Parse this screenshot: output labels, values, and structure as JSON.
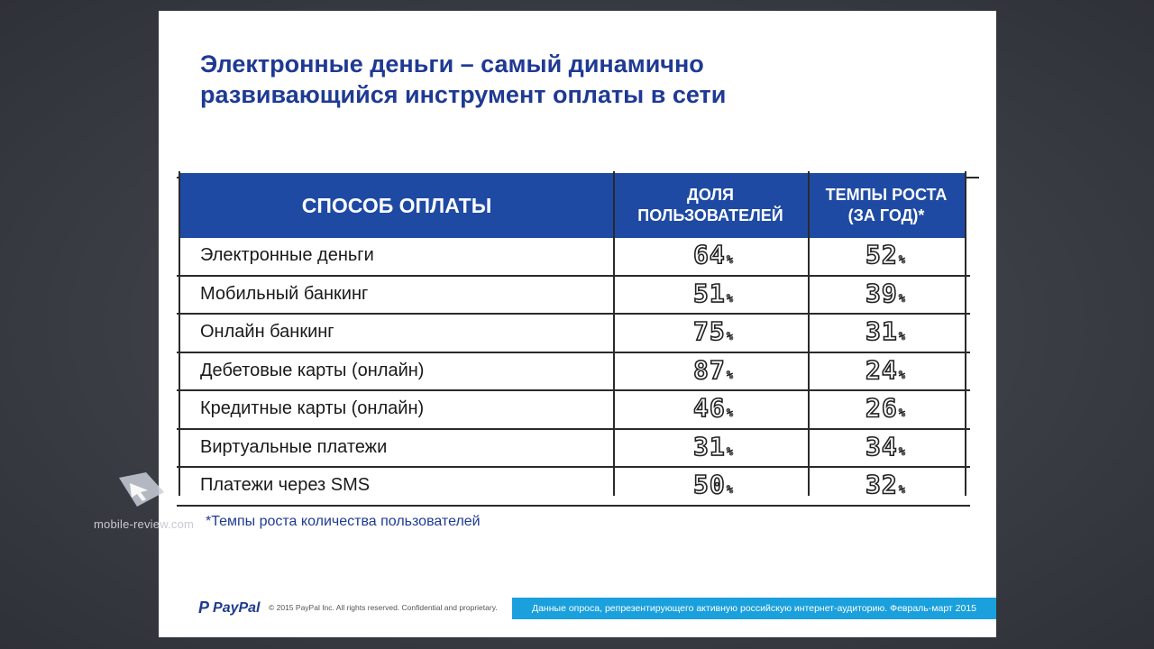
{
  "slide": {
    "title_line1": "Электронные деньги – самый динамично",
    "title_line2": "развивающийся инструмент оплаты в сети"
  },
  "table": {
    "headers": {
      "method": "СПОСОБ ОПЛАТЫ",
      "share_line1": "ДОЛЯ",
      "share_line2": "ПОЛЬЗОВАТЕЛЕЙ",
      "growth_line1": "ТЕМПЫ РОСТА",
      "growth_line2": "(ЗА ГОД)*"
    },
    "rows": [
      {
        "method": "Электронные деньги",
        "share": "64",
        "growth": "52"
      },
      {
        "method": "Мобильный банкинг",
        "share": "51",
        "growth": "39"
      },
      {
        "method": "Онлайн банкинг",
        "share": "75",
        "growth": "31"
      },
      {
        "method": "Дебетовые карты (онлайн)",
        "share": "87",
        "growth": "24"
      },
      {
        "method": "Кредитные карты (онлайн)",
        "share": "46",
        "growth": "26"
      },
      {
        "method": "Виртуальные платежи",
        "share": "31",
        "growth": "34"
      },
      {
        "method": "Платежи через  SMS",
        "share": "50",
        "growth": "32"
      }
    ],
    "percent_sign": "%"
  },
  "footnote": "*Темпы роста количества пользователей",
  "footer": {
    "logo_text": "PayPal",
    "logo_mark": "P",
    "copyright": "© 2015 PayPal Inc. All rights reserved. Confidential and proprietary.",
    "source": "Данные опроса, репрезентирующего активную российскую интернет-аудиторию. Февраль-март 2015"
  },
  "watermark": "mobile-review.com",
  "colors": {
    "title": "#1f3a93",
    "header_bg": "#1e4aa3",
    "footer_bar": "#1aa0dc"
  }
}
